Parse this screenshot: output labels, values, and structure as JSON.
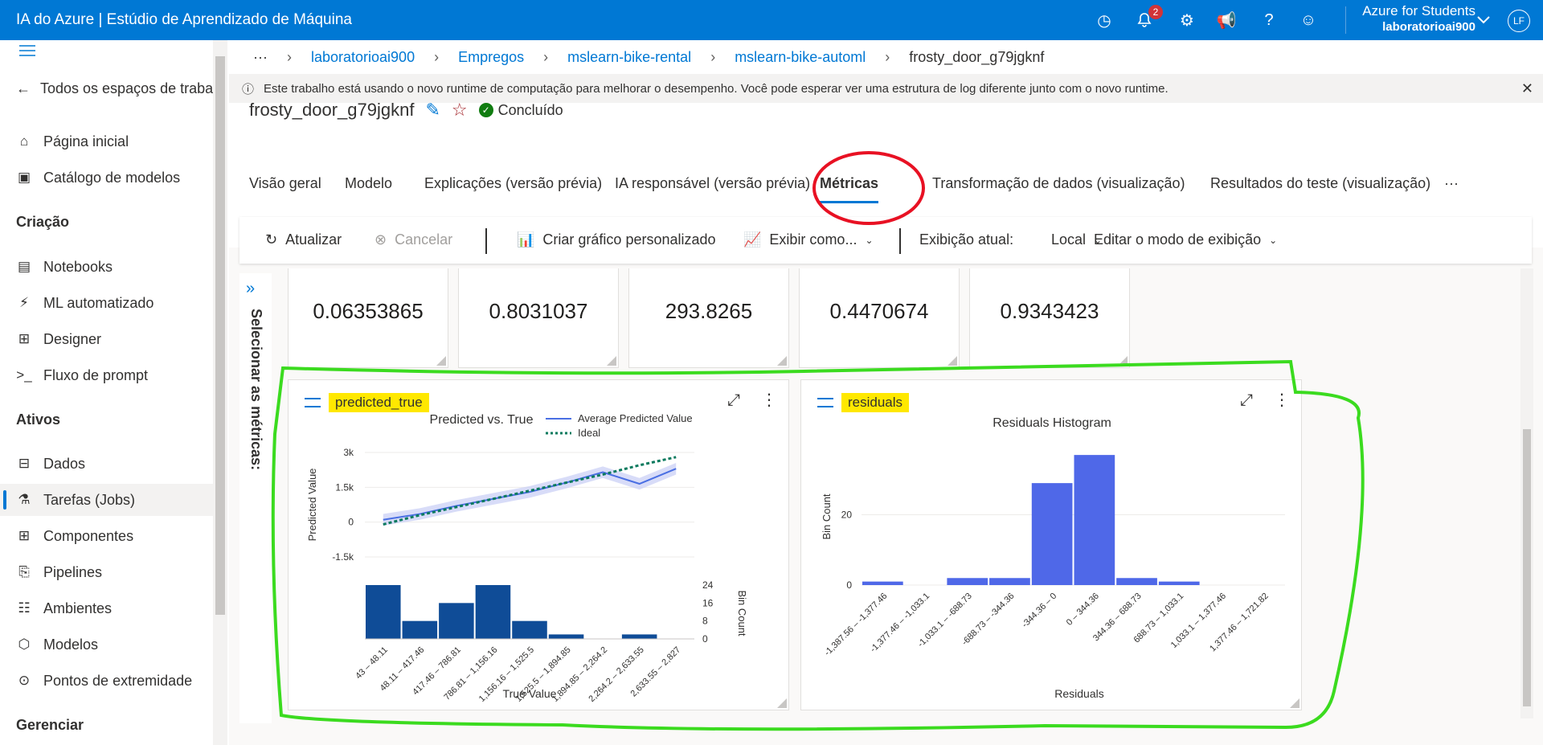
{
  "app": {
    "title": "IA do Azure | Estúdio de Aprendizado de Máquina",
    "notif_count": "2",
    "account_name": "Azure for Students",
    "account_sub": "laboratorioai900",
    "avatar": "LF",
    "accent": "#0078d4"
  },
  "sidebar": {
    "back": "Todos os espaços de trabal",
    "items_top": [
      {
        "icon": "home-icon",
        "label": "Página inicial"
      },
      {
        "icon": "catalog-icon",
        "label": "Catálogo de modelos"
      }
    ],
    "section_criacao": "Criação",
    "items_criacao": [
      {
        "icon": "notebook-icon",
        "label": "Notebooks"
      },
      {
        "icon": "automl-icon",
        "label": "ML automatizado"
      },
      {
        "icon": "designer-icon",
        "label": "Designer"
      },
      {
        "icon": "prompt-flow-icon",
        "label": "Fluxo de prompt"
      }
    ],
    "section_ativos": "Ativos",
    "items_ativos": [
      {
        "icon": "data-icon",
        "label": "Dados"
      },
      {
        "icon": "jobs-icon",
        "label": "Tarefas (Jobs)"
      },
      {
        "icon": "components-icon",
        "label": "Componentes"
      },
      {
        "icon": "pipelines-icon",
        "label": "Pipelines"
      },
      {
        "icon": "environments-icon",
        "label": "Ambientes"
      },
      {
        "icon": "models-icon",
        "label": "Modelos"
      },
      {
        "icon": "endpoints-icon",
        "label": "Pontos de extremidade"
      }
    ],
    "section_gerenciar": "Gerenciar"
  },
  "breadcrumb": {
    "ellipsis": "···",
    "items": [
      "laboratorioai900",
      "Empregos",
      "mslearn-bike-rental",
      "mslearn-bike-automl",
      "frosty_door_g79jgknf"
    ]
  },
  "info": {
    "text": "Este trabalho está usando o novo runtime de computação para melhorar o desempenho. Você pode esperar ver uma estrutura de log diferente junto com o novo runtime."
  },
  "job": {
    "title": "frosty_door_g79jgknf",
    "status": "Concluído"
  },
  "tabs": [
    "Visão geral",
    "Modelo",
    "Explicações (versão prévia)",
    "IA responsável (versão prévia)",
    "Métricas",
    "Transformação de dados (visualização)",
    "Resultados do teste (visualização)",
    "···"
  ],
  "toolbar": {
    "refresh": "Atualizar",
    "cancel": "Cancelar",
    "custom_chart": "Criar gráfico personalizado",
    "view_as": "Exibir como...",
    "current_view_label": "Exibição atual:",
    "current_view": "Local",
    "edit_view": "Editar o modo de exibição"
  },
  "pane": {
    "label": "Selecionar as métricas:"
  },
  "metric_values": [
    "0.06353865",
    "0.8031037",
    "293.8265",
    "0.4470674",
    "0.9343423"
  ],
  "charts": {
    "c1": {
      "name": "predicted_true",
      "title": "Predicted vs. True",
      "legend_avg": "Average Predicted Value",
      "legend_ideal": "Ideal",
      "ylabel": "Predicted Value",
      "xlabel": "True Value",
      "y2label": "Bin Count"
    },
    "c2": {
      "name": "residuals",
      "title": "Residuals Histogram",
      "ylabel": "Bin Count",
      "xlabel": "Residuals"
    }
  },
  "chart_data": [
    {
      "type": "line",
      "title": "Predicted vs. True",
      "xlabel": "True Value",
      "ylabel": "Predicted Value",
      "ylim": [
        -1500,
        3000
      ],
      "yticks": [
        "3k",
        "1.5k",
        "0",
        "-1.5k"
      ],
      "categories": [
        "43 – 48.11",
        "48.11 – 417.46",
        "417.46 – 786.81",
        "786.81 – 1,156.16",
        "1,156.16 – 1,525.5",
        "1,525.5 – 1,894.85",
        "1,894.85 – 2,264.2",
        "2,264.2 – 2,633.55",
        "2,633.55 – 2,827"
      ],
      "series": [
        {
          "name": "Average Predicted Value",
          "values": [
            100,
            350,
            700,
            1000,
            1300,
            1700,
            2150,
            1650,
            2300
          ]
        },
        {
          "name": "Ideal",
          "values": [
            -100,
            300,
            650,
            1000,
            1350,
            1700,
            2050,
            2450,
            2800
          ]
        }
      ],
      "bin_counts": [
        24,
        8,
        16,
        24,
        8,
        2,
        0,
        2,
        0
      ],
      "bin_ticks": [
        "24",
        "16",
        "8",
        "0"
      ],
      "bin_label": "Bin Count"
    },
    {
      "type": "bar",
      "title": "Residuals Histogram",
      "xlabel": "Residuals",
      "ylabel": "Bin Count",
      "ylim": [
        0,
        40
      ],
      "yticks": [
        "20",
        "0"
      ],
      "categories": [
        "-1,387.56 – -1,377.46",
        "-1,377.46 – -1,033.1",
        "-1,033.1 – -688.73",
        "-688.73 – -344.36",
        "-344.36 – 0",
        "0 – 344.36",
        "344.36 – 688.73",
        "688.73 – 1,033.1",
        "1,033.1 – 1,377.46",
        "1,377.46 – 1,721.82"
      ],
      "values": [
        1,
        0,
        2,
        2,
        29,
        37,
        2,
        1,
        0,
        0
      ]
    }
  ]
}
